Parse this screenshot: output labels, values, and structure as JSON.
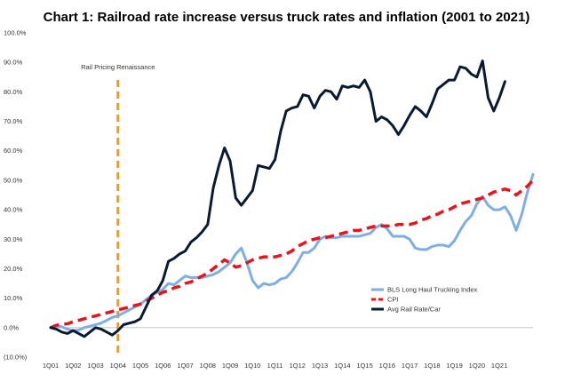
{
  "chart_data": {
    "type": "line",
    "title": "Chart 1: Railroad rate increase versus truck rates and inflation (2001 to 2021)",
    "xlabel": "",
    "ylabel": "",
    "ylim": [
      -10,
      100
    ],
    "y_ticks": [
      "(10.0%)",
      "0.0%",
      "10.0%",
      "20.0%",
      "30.0%",
      "40.0%",
      "50.0%",
      "60.0%",
      "70.0%",
      "80.0%",
      "90.0%",
      "100.0%"
    ],
    "x_ticks": [
      "1Q01",
      "1Q02",
      "1Q03",
      "1Q04",
      "1Q05",
      "1Q06",
      "1Q07",
      "1Q08",
      "1Q09",
      "1Q10",
      "1Q11",
      "1Q12",
      "1Q13",
      "1Q14",
      "1Q15",
      "1Q16",
      "1Q17",
      "1Q18",
      "1Q19",
      "1Q20",
      "1Q21"
    ],
    "grid": false,
    "legend_position": "bottom-right",
    "annotation": {
      "label": "Rail Pricing Renaissance",
      "at_quarter": 12,
      "color": "#f39c12"
    },
    "series": [
      {
        "name": "BLS Long Haul Trucking Index",
        "color": "#7faee3",
        "dash": "solid",
        "values": [
          0,
          0.5,
          0.3,
          -0.5,
          -1,
          -0.8,
          0,
          0.5,
          1,
          1.5,
          2.5,
          3.5,
          4,
          5,
          6,
          7,
          8,
          9.5,
          11,
          12,
          13,
          15,
          14.5,
          16,
          17.5,
          17,
          17,
          17,
          17.5,
          18,
          19,
          20.5,
          22,
          25,
          27,
          22,
          16,
          13.5,
          15,
          14.5,
          15,
          16.5,
          17,
          19,
          22,
          25.5,
          25.5,
          27,
          30,
          31,
          30.5,
          30.5,
          31,
          31,
          31,
          31,
          31.5,
          32,
          34,
          35,
          33.5,
          31,
          31,
          31,
          30,
          27,
          26.5,
          26.5,
          27.5,
          28,
          28,
          27.5,
          29.5,
          33,
          36,
          38,
          42,
          44.5,
          41.5,
          40,
          40,
          41,
          38,
          33,
          38.5,
          46,
          52
        ]
      },
      {
        "name": "CPI",
        "color": "#e8141c",
        "dash": "dashed",
        "values": [
          0,
          0.8,
          1.2,
          1.3,
          2,
          2.5,
          3,
          3.5,
          4,
          4.5,
          5,
          5.5,
          6,
          6.5,
          7,
          7.5,
          8,
          9,
          10,
          11,
          12,
          12.5,
          13.5,
          14,
          15,
          15.5,
          16.5,
          17.5,
          18.5,
          20,
          21.5,
          23,
          22,
          20.5,
          21,
          22,
          23,
          23.5,
          24,
          24,
          24,
          24.5,
          25,
          26,
          27.5,
          28.5,
          29.5,
          30,
          30.5,
          30.5,
          31,
          31.5,
          32,
          32.5,
          33,
          33,
          33.5,
          34,
          34.5,
          34.5,
          34.5,
          34.5,
          35,
          35,
          35,
          35.5,
          36.5,
          37,
          38,
          38.5,
          39.5,
          40,
          41,
          42,
          42.5,
          43,
          43.5,
          44,
          45,
          46,
          46.5,
          47,
          46.5,
          45,
          46.5,
          48,
          50
        ]
      },
      {
        "name": "Avg Rail Rate/Car",
        "color": "#0b1a33",
        "dash": "solid",
        "values": [
          0,
          -0.5,
          -1.5,
          -2,
          -1,
          -2,
          -3,
          -1.5,
          0,
          -0.5,
          -1.5,
          -2.5,
          -1,
          1,
          1.5,
          2,
          3,
          7,
          11,
          12.5,
          16,
          22.5,
          23.5,
          25,
          26,
          29,
          30.5,
          32.5,
          35,
          47.5,
          55,
          61,
          56.5,
          44,
          41.5,
          44,
          46.5,
          55,
          54.5,
          54,
          57,
          66.5,
          73.5,
          74.5,
          75,
          79,
          78.5,
          74.5,
          78.5,
          80.5,
          80,
          77.5,
          82,
          81.5,
          82,
          81.5,
          84,
          80,
          70,
          71.5,
          70.5,
          68.5,
          65.5,
          68.5,
          72,
          75,
          73.5,
          71.5,
          76,
          81,
          82.5,
          84,
          84,
          88.5,
          88,
          86,
          85,
          90.5,
          78,
          73.5,
          78,
          83.5
        ]
      }
    ]
  }
}
